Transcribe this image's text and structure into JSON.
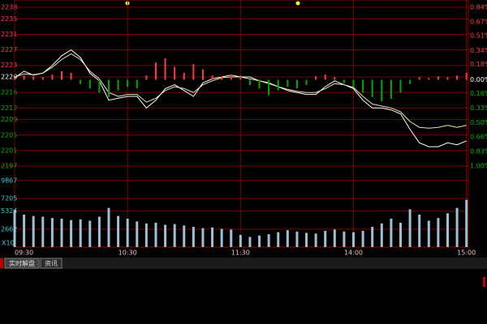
{
  "chart_data": [
    {
      "type": "line",
      "ylim": [
        2197,
        2238
      ],
      "yticks": [
        2238,
        2235,
        2231,
        2227,
        2223,
        2220,
        2216,
        2212,
        2209,
        2205,
        2201,
        2197
      ],
      "y2lim": [
        -1.0,
        0.84
      ],
      "y2ticks": [
        {
          "value": 0.84,
          "label": "0.84%"
        },
        {
          "value": 0.67,
          "label": "0.67%"
        },
        {
          "value": 0.51,
          "label": "0.51%"
        },
        {
          "value": 0.34,
          "label": "0.34%"
        },
        {
          "value": 0.18,
          "label": "0.18%"
        },
        {
          "value": 0,
          "label": "0.00%"
        },
        {
          "value": -0.16,
          "label": "0.16%"
        },
        {
          "value": -0.33,
          "label": "0.33%"
        },
        {
          "value": -0.5,
          "label": "0.50%"
        },
        {
          "value": -0.66,
          "label": "0.66%"
        },
        {
          "value": -0.83,
          "label": "0.83%"
        },
        {
          "value": -1.0,
          "label": "1.00%"
        }
      ],
      "grid": true,
      "up_color": "#ff4040",
      "down_color": "#00b400",
      "flat_color": "#ffffff",
      "series": [
        {
          "color": "#ffffff",
          "values": [
            2219.8,
            2221.5,
            2220.5,
            2221.0,
            2223.0,
            2225.5,
            2227.0,
            2225.0,
            2221.0,
            2219.0,
            2214.0,
            2214.5,
            2215.0,
            2215.0,
            2212.0,
            2214.0,
            2217.0,
            2218.0,
            2216.5,
            2215.0,
            2218.5,
            2219.5,
            2220.0,
            2220.5,
            2220.0,
            2220.0,
            2219.0,
            2218.5,
            2217.5,
            2216.5,
            2216.0,
            2215.5,
            2215.5,
            2217.5,
            2219.0,
            2218.0,
            2217.0,
            2214.0,
            2212.0,
            2212.0,
            2211.5,
            2210.5,
            2206.5,
            2203.0,
            2202.0,
            2202.0,
            2203.0,
            2202.5,
            2203.5
          ]
        },
        {
          "color": "#e8e8b0",
          "values": [
            2220.0,
            2220.8,
            2220.6,
            2221.0,
            2222.5,
            2224.5,
            2226.0,
            2224.5,
            2221.5,
            2219.5,
            2216.0,
            2215.0,
            2215.5,
            2215.5,
            2213.5,
            2214.5,
            2216.5,
            2217.5,
            2217.0,
            2216.0,
            2218.0,
            2219.0,
            2219.8,
            2220.0,
            2220.0,
            2219.5,
            2219.0,
            2218.3,
            2217.5,
            2216.8,
            2216.3,
            2216.0,
            2216.0,
            2217.0,
            2218.3,
            2218.0,
            2217.3,
            2215.0,
            2213.0,
            2212.5,
            2212.0,
            2211.0,
            2208.5,
            2207.0,
            2206.8,
            2207.0,
            2207.5,
            2207.0,
            2207.5
          ]
        },
        {
          "type": "bar",
          "axis": "y2",
          "color": "#ff3c3c",
          "negative_color": "#00a800",
          "values": [
            0.02,
            0.05,
            0.04,
            0.03,
            0.06,
            0.1,
            0.08,
            -0.05,
            -0.1,
            -0.15,
            -0.2,
            -0.12,
            -0.08,
            -0.1,
            0.05,
            0.2,
            0.25,
            0.15,
            0.08,
            0.18,
            0.12,
            0.05,
            0.04,
            0.06,
            0.05,
            -0.06,
            -0.1,
            -0.18,
            -0.12,
            -0.08,
            -0.1,
            -0.06,
            0.04,
            0.06,
            0.03,
            -0.04,
            -0.08,
            -0.15,
            -0.2,
            -0.25,
            -0.22,
            -0.15,
            -0.05,
            0.03,
            0.02,
            0.04,
            0.03,
            0.05,
            0.08
          ]
        }
      ]
    },
    {
      "type": "bar",
      "unit_label": "X10",
      "color": "#9cc0d4",
      "ylim": [
        0,
        12000
      ],
      "yticks": [
        9867,
        7205,
        5324,
        2662
      ],
      "categories": [
        "09:30",
        null,
        null,
        null,
        null,
        null,
        null,
        null,
        null,
        null,
        null,
        null,
        "10:30",
        null,
        null,
        null,
        null,
        null,
        null,
        null,
        null,
        null,
        null,
        null,
        "11:30",
        null,
        null,
        null,
        null,
        null,
        null,
        null,
        null,
        null,
        null,
        null,
        "14:00",
        null,
        null,
        null,
        null,
        null,
        null,
        null,
        null,
        null,
        null,
        null,
        "15:00"
      ],
      "values": [
        5500,
        4800,
        4600,
        4500,
        4300,
        4200,
        4000,
        4100,
        3900,
        4500,
        5800,
        4600,
        4200,
        3800,
        3500,
        3600,
        3300,
        3400,
        3200,
        3000,
        2800,
        2900,
        2700,
        2600,
        1800,
        1500,
        1700,
        1900,
        2200,
        2500,
        2300,
        2100,
        2000,
        2400,
        2600,
        2300,
        2200,
        2400,
        3000,
        3500,
        4200,
        3600,
        5600,
        4800,
        3900,
        4300,
        5000,
        5800,
        7000
      ]
    }
  ],
  "tabs": [
    "实时解盘",
    "资讯"
  ]
}
